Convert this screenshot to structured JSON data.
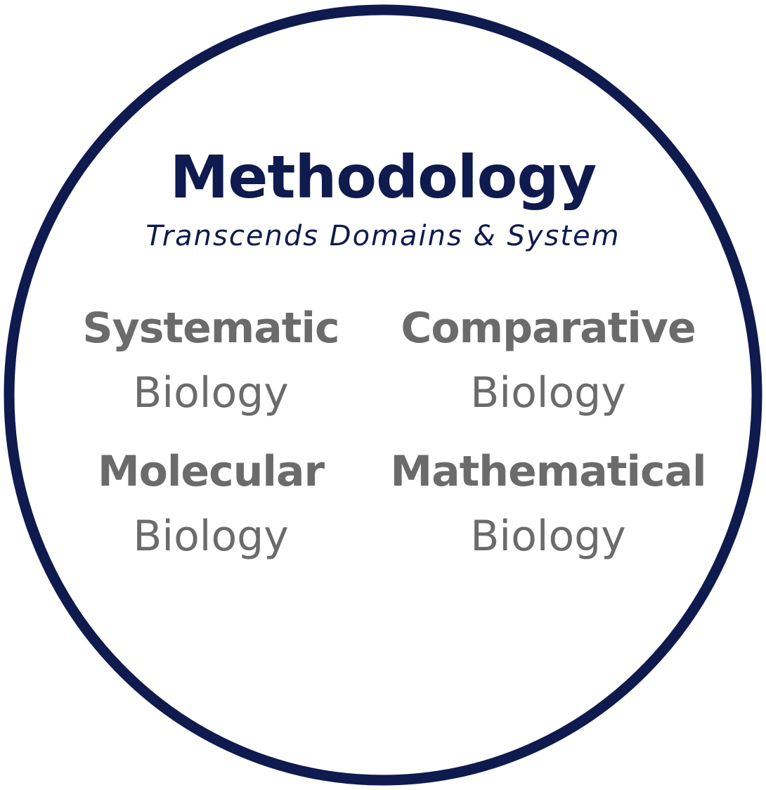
{
  "title": "Methodology",
  "subtitle": "Transcends Domains & System",
  "colors": {
    "ring": "#0f1a4e",
    "title": "#0f1a4e",
    "cell_text": "#6b6b6b"
  },
  "cells": [
    {
      "heading": "Systematic",
      "sub": "Biology"
    },
    {
      "heading": "Comparative",
      "sub": "Biology"
    },
    {
      "heading": "Molecular",
      "sub": "Biology"
    },
    {
      "heading": "Mathematical",
      "sub": "Biology"
    }
  ]
}
